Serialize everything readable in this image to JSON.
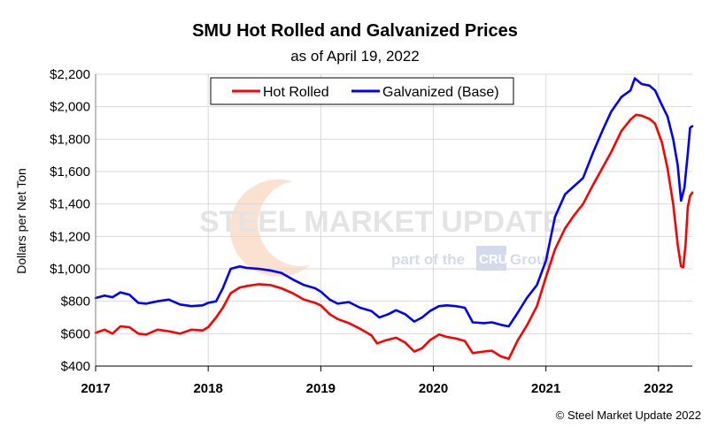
{
  "chart_data": {
    "type": "line",
    "title": "SMU Hot Rolled and Galvanized Prices",
    "subtitle": "as of April 19, 2022",
    "ylabel": "Dollars per Net Ton",
    "xlabel": "",
    "ylim": [
      400,
      2200
    ],
    "xlim": [
      2017.0,
      2022.3
    ],
    "y_ticks": [
      400,
      600,
      800,
      1000,
      1200,
      1400,
      1600,
      1800,
      2000,
      2200
    ],
    "y_tick_labels": [
      "$400",
      "$600",
      "$800",
      "$1,000",
      "$1,200",
      "$1,400",
      "$1,600",
      "$1,800",
      "$2,000",
      "$2,200"
    ],
    "x_ticks": [
      2017,
      2018,
      2019,
      2020,
      2021,
      2022
    ],
    "x_tick_labels": [
      "2017",
      "2018",
      "2019",
      "2020",
      "2021",
      "2022"
    ],
    "grid": "horizontal",
    "legend_position": "top-center",
    "series": [
      {
        "name": "Hot Rolled",
        "color": "#ff0000",
        "points": [
          [
            2017.0,
            605
          ],
          [
            2017.08,
            625
          ],
          [
            2017.15,
            600
          ],
          [
            2017.22,
            645
          ],
          [
            2017.3,
            640
          ],
          [
            2017.38,
            600
          ],
          [
            2017.45,
            595
          ],
          [
            2017.55,
            625
          ],
          [
            2017.65,
            615
          ],
          [
            2017.75,
            600
          ],
          [
            2017.85,
            625
          ],
          [
            2017.95,
            620
          ],
          [
            2018.0,
            640
          ],
          [
            2018.07,
            700
          ],
          [
            2018.13,
            760
          ],
          [
            2018.2,
            850
          ],
          [
            2018.28,
            885
          ],
          [
            2018.35,
            895
          ],
          [
            2018.45,
            905
          ],
          [
            2018.55,
            900
          ],
          [
            2018.65,
            880
          ],
          [
            2018.75,
            850
          ],
          [
            2018.85,
            810
          ],
          [
            2018.95,
            790
          ],
          [
            2019.0,
            775
          ],
          [
            2019.08,
            720
          ],
          [
            2019.15,
            690
          ],
          [
            2019.25,
            665
          ],
          [
            2019.35,
            630
          ],
          [
            2019.45,
            590
          ],
          [
            2019.5,
            540
          ],
          [
            2019.58,
            560
          ],
          [
            2019.67,
            575
          ],
          [
            2019.75,
            545
          ],
          [
            2019.83,
            490
          ],
          [
            2019.9,
            510
          ],
          [
            2019.97,
            560
          ],
          [
            2020.05,
            595
          ],
          [
            2020.12,
            580
          ],
          [
            2020.2,
            570
          ],
          [
            2020.28,
            555
          ],
          [
            2020.35,
            480
          ],
          [
            2020.45,
            490
          ],
          [
            2020.52,
            495
          ],
          [
            2020.6,
            460
          ],
          [
            2020.67,
            445
          ],
          [
            2020.75,
            560
          ],
          [
            2020.83,
            650
          ],
          [
            2020.92,
            770
          ],
          [
            2021.0,
            950
          ],
          [
            2021.08,
            1120
          ],
          [
            2021.17,
            1250
          ],
          [
            2021.25,
            1330
          ],
          [
            2021.33,
            1400
          ],
          [
            2021.42,
            1520
          ],
          [
            2021.5,
            1620
          ],
          [
            2021.58,
            1720
          ],
          [
            2021.67,
            1850
          ],
          [
            2021.75,
            1920
          ],
          [
            2021.8,
            1950
          ],
          [
            2021.85,
            1945
          ],
          [
            2021.92,
            1925
          ],
          [
            2021.97,
            1895
          ],
          [
            2022.03,
            1780
          ],
          [
            2022.08,
            1620
          ],
          [
            2022.13,
            1400
          ],
          [
            2022.17,
            1150
          ],
          [
            2022.2,
            1015
          ],
          [
            2022.22,
            1010
          ],
          [
            2022.24,
            1150
          ],
          [
            2022.26,
            1380
          ],
          [
            2022.28,
            1450
          ],
          [
            2022.3,
            1470
          ]
        ]
      },
      {
        "name": "Galvanized (Base)",
        "color": "#0000ff",
        "points": [
          [
            2017.0,
            820
          ],
          [
            2017.08,
            835
          ],
          [
            2017.15,
            825
          ],
          [
            2017.22,
            855
          ],
          [
            2017.3,
            840
          ],
          [
            2017.38,
            790
          ],
          [
            2017.45,
            785
          ],
          [
            2017.55,
            800
          ],
          [
            2017.65,
            810
          ],
          [
            2017.75,
            780
          ],
          [
            2017.85,
            770
          ],
          [
            2017.95,
            775
          ],
          [
            2018.0,
            790
          ],
          [
            2018.07,
            800
          ],
          [
            2018.13,
            880
          ],
          [
            2018.2,
            1000
          ],
          [
            2018.28,
            1015
          ],
          [
            2018.35,
            1005
          ],
          [
            2018.45,
            1000
          ],
          [
            2018.55,
            990
          ],
          [
            2018.65,
            975
          ],
          [
            2018.75,
            935
          ],
          [
            2018.85,
            900
          ],
          [
            2018.95,
            880
          ],
          [
            2019.0,
            860
          ],
          [
            2019.08,
            810
          ],
          [
            2019.15,
            785
          ],
          [
            2019.25,
            795
          ],
          [
            2019.35,
            760
          ],
          [
            2019.45,
            740
          ],
          [
            2019.52,
            700
          ],
          [
            2019.6,
            720
          ],
          [
            2019.67,
            745
          ],
          [
            2019.75,
            720
          ],
          [
            2019.83,
            675
          ],
          [
            2019.9,
            700
          ],
          [
            2019.97,
            740
          ],
          [
            2020.05,
            770
          ],
          [
            2020.12,
            775
          ],
          [
            2020.2,
            770
          ],
          [
            2020.28,
            760
          ],
          [
            2020.35,
            670
          ],
          [
            2020.45,
            665
          ],
          [
            2020.52,
            670
          ],
          [
            2020.6,
            655
          ],
          [
            2020.67,
            645
          ],
          [
            2020.75,
            730
          ],
          [
            2020.83,
            820
          ],
          [
            2020.92,
            900
          ],
          [
            2021.0,
            1050
          ],
          [
            2021.08,
            1320
          ],
          [
            2021.17,
            1460
          ],
          [
            2021.25,
            1510
          ],
          [
            2021.33,
            1560
          ],
          [
            2021.42,
            1720
          ],
          [
            2021.5,
            1850
          ],
          [
            2021.58,
            1970
          ],
          [
            2021.67,
            2060
          ],
          [
            2021.75,
            2100
          ],
          [
            2021.79,
            2175
          ],
          [
            2021.85,
            2140
          ],
          [
            2021.92,
            2130
          ],
          [
            2021.97,
            2100
          ],
          [
            2022.03,
            2010
          ],
          [
            2022.08,
            1940
          ],
          [
            2022.13,
            1800
          ],
          [
            2022.17,
            1640
          ],
          [
            2022.2,
            1420
          ],
          [
            2022.23,
            1500
          ],
          [
            2022.26,
            1710
          ],
          [
            2022.28,
            1870
          ],
          [
            2022.3,
            1880
          ]
        ]
      }
    ]
  },
  "watermark": {
    "brand": "STEEL MARKET UPDATE",
    "tagline_pre": "part of the",
    "tagline_logo": "CRU",
    "tagline_post": "Group"
  },
  "copyright": "© Steel Market Update 2022"
}
